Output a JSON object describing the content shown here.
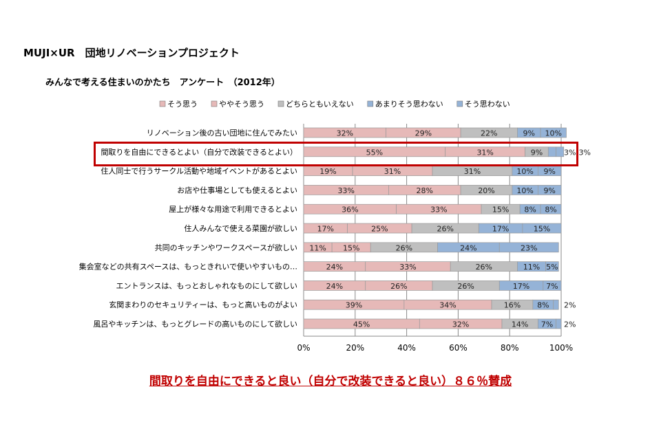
{
  "title": "MUJI×UR　団地リノベーションプロジェクト",
  "subtitle": "みんなで考える住まいのかたち　アンケート　（2012年）",
  "conclusion": "間取りを自由にできると良い（自分で改装できると良い）８６％賛成",
  "chart_data": {
    "type": "bar",
    "orientation": "horizontal",
    "stacked": true,
    "legend_position": "top",
    "series_names": [
      "そう思う",
      "ややそう思う",
      "どちらともいえない",
      "あまりそう思わない",
      "そう思わない"
    ],
    "colors": [
      "#e6b9b8",
      "#e6b9b8",
      "#bfbfbf",
      "#95b3d7",
      "#95b3d7"
    ],
    "categories": [
      "リノベーション後の古い団地に住んでみたい",
      "間取りを自由にできるとよい（自分で改装できるとよい）",
      "住人同士で行うサークル活動や地域イベントがあるとよい",
      "お店や仕事場としても使えるとよい",
      "屋上が様々な用途で利用できるとよい",
      "住人みんなで使える菜園が欲しい",
      "共同のキッチンやワークスペースが欲しい",
      "集会室などの共有スペースは、もっときれいで使いやすいもの…",
      "エントランスは、もっとおしゃれなものにして欲しい",
      "玄関まわりのセキュリティーは、もっと高いものがよい",
      "風呂やキッチンは、もっとグレードの高いものにして欲しい"
    ],
    "values": [
      [
        32,
        29,
        22,
        9,
        10
      ],
      [
        55,
        31,
        9,
        3,
        3
      ],
      [
        19,
        31,
        31,
        10,
        9
      ],
      [
        33,
        28,
        20,
        10,
        9
      ],
      [
        36,
        33,
        15,
        8,
        8
      ],
      [
        17,
        25,
        26,
        17,
        15
      ],
      [
        11,
        15,
        26,
        24,
        23
      ],
      [
        24,
        33,
        26,
        11,
        5
      ],
      [
        24,
        26,
        26,
        17,
        7
      ],
      [
        39,
        34,
        16,
        8,
        2
      ],
      [
        45,
        32,
        14,
        7,
        2
      ]
    ],
    "highlight_index": 1,
    "xticks": [
      "0%",
      "20%",
      "40%",
      "60%",
      "80%",
      "100%"
    ],
    "xlim": [
      0,
      100
    ]
  }
}
